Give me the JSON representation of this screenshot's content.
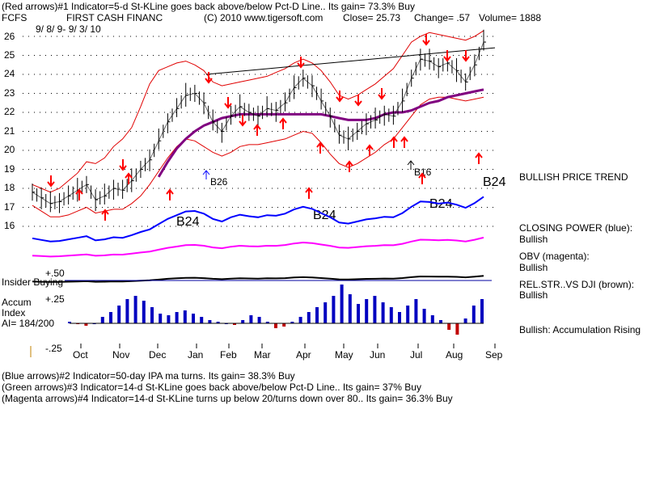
{
  "header": {
    "line1": "(Red arrows)#1 Indicator=5-d St-KLine goes back above/below Pct-D Line.. Its gain= 73.3% Buy",
    "symbol": "FCFS",
    "company": "FIRST CASH FINANC",
    "copyright": "(C) 2010 www.tigersoft.com",
    "close": "Close=  25.73",
    "change": "Change= .57",
    "volume": "Volume= 1888",
    "dates": "9/ 8/ 9-  9/ 3/ 10"
  },
  "footer": {
    "line2": "(Blue arrows)#2 Indicator=50-day IPA ma turns. Its gain= 38.3% Buy",
    "line3": "(Green arrows)#3 Indicator=14-d St-KLine goes back above/below Pct-D Line.. Its gain= 37% Buy",
    "line4": "(Magenta arrows)#4 Indicator=14-d St-KLine turns up below 20/turns down over 80.. Its gain= 36.3% Buy"
  },
  "panel_labels": {
    "insider": "Insider Buying",
    "plus50": "+.50",
    "plus25": "+.25",
    "minus25": "-.25",
    "accum1": "Accum",
    "accum2": "Index",
    "ai": "AI= 184/200"
  },
  "right_labels": {
    "trend": "BULLISH PRICE TREND",
    "cp_title": "CLOSING POWER (blue):",
    "cp_value": "Bullish",
    "obv_title": "OBV (magenta):",
    "obv_value": "Bullish",
    "rs_title": "REL.STR..VS DJI (brown):",
    "rs_value": "Bullish",
    "accum": "Bullish: Accumulation Rising"
  },
  "annotations": {
    "b26": "B26",
    "b16": "B16",
    "b24_a": "B24",
    "b24_b": "B24",
    "b24_c": "B24",
    "b24_d": "B24"
  },
  "chart_data": {
    "type": "line",
    "x_tick_labels": [
      "Oct",
      "Nov",
      "Dec",
      "Jan",
      "Feb",
      "Mar",
      "Apr",
      "May",
      "Jun",
      "Jul",
      "Aug",
      "Sep"
    ],
    "y_tick_labels": [
      "26",
      "25",
      "24",
      "23",
      "22",
      "21",
      "20",
      "19",
      "18",
      "17",
      "16"
    ],
    "ylim": [
      15,
      26
    ],
    "price_close": [
      17.8,
      17.5,
      17.2,
      17.3,
      17.6,
      17.9,
      18.2,
      17.4,
      17.6,
      18.0,
      17.9,
      18.4,
      19.0,
      19.5,
      20.5,
      21.5,
      22.2,
      22.9,
      23.0,
      22.5,
      21.5,
      21.0,
      21.8,
      22.3,
      22.0,
      21.8,
      22.2,
      22.1,
      22.5,
      23.3,
      23.8,
      23.4,
      22.6,
      21.8,
      20.8,
      20.6,
      21.0,
      21.4,
      21.6,
      21.9,
      21.8,
      22.6,
      23.8,
      24.8,
      24.7,
      24.4,
      24.6,
      24.2,
      23.6,
      24.5,
      25.7
    ],
    "ma50": [
      null,
      null,
      null,
      null,
      null,
      null,
      null,
      null,
      null,
      null,
      null,
      null,
      null,
      null,
      18.6,
      19.4,
      20.1,
      20.6,
      21.0,
      21.3,
      21.5,
      21.7,
      21.8,
      21.9,
      21.9,
      21.9,
      21.9,
      21.9,
      21.9,
      21.9,
      21.9,
      21.9,
      21.9,
      21.8,
      21.7,
      21.6,
      21.6,
      21.6,
      21.7,
      21.9,
      22.0,
      22.0,
      22.1,
      22.3,
      22.5,
      22.6,
      22.8,
      22.9,
      23.0,
      23.1,
      23.2
    ],
    "upper_band": [
      18.2,
      18.0,
      17.8,
      18.0,
      18.4,
      18.8,
      19.4,
      19.3,
      19.6,
      20.2,
      20.6,
      21.2,
      22.3,
      23.5,
      24.2,
      24.4,
      24.6,
      24.7,
      24.5,
      24.2,
      23.6,
      23.4,
      23.5,
      23.6,
      23.7,
      23.8,
      23.9,
      24.1,
      24.3,
      24.6,
      24.8,
      24.6,
      24.2,
      23.6,
      22.9,
      22.7,
      22.9,
      23.2,
      23.5,
      23.9,
      24.3,
      25.0,
      25.7,
      26.0,
      26.2,
      26.1,
      26.0,
      25.9,
      25.8,
      26.0,
      26.3
    ],
    "lower_band": [
      17.1,
      16.8,
      16.5,
      16.5,
      16.6,
      16.8,
      17.0,
      16.7,
      16.8,
      16.9,
      16.9,
      17.2,
      17.6,
      18.2,
      18.9,
      19.6,
      20.2,
      20.6,
      20.5,
      20.2,
      19.9,
      19.7,
      19.9,
      20.2,
      20.3,
      20.3,
      20.4,
      20.5,
      20.6,
      20.8,
      21.0,
      20.9,
      20.4,
      19.8,
      19.3,
      19.1,
      19.3,
      19.6,
      19.9,
      20.3,
      20.6,
      21.2,
      21.8,
      22.4,
      22.7,
      22.8,
      22.8,
      22.7,
      22.6,
      22.7,
      22.8
    ],
    "resistance_line": {
      "from": {
        "x": "Jan",
        "y": 24.0
      },
      "to": {
        "x": "Sep",
        "y": 25.4
      }
    },
    "indicators": [
      "Closing Power (blue)",
      "OBV (magenta)",
      "Rel.Str. vs DJI (brown)",
      "Accumulation Index"
    ],
    "accum_index": {
      "ylim": [
        -0.25,
        0.5
      ],
      "ticks": [
        "+.50",
        "+.25",
        "-.25"
      ]
    }
  },
  "colors": {
    "price": "#000000",
    "ma": "#800080",
    "bands": "#e00000",
    "closing_power": "#0000ff",
    "obv": "#ff00ff",
    "relstr": "#000000",
    "accum": "#0000c0",
    "arrow_red": "#ff0000",
    "arrow_blue": "#0000ff"
  }
}
